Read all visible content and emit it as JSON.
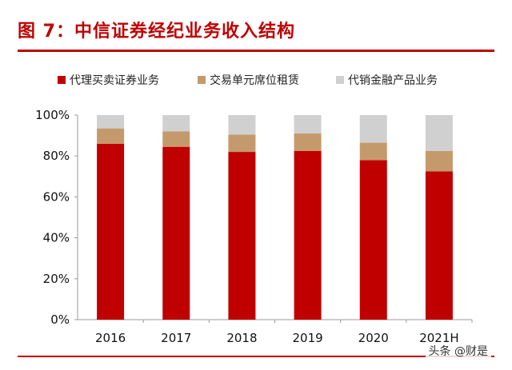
{
  "title": "图 7：中信证券经纪业务收入结构",
  "watermark": "头条 @财是",
  "chart_data": {
    "type": "bar",
    "stacked": true,
    "categories": [
      "2016",
      "2017",
      "2018",
      "2019",
      "2020",
      "2021H"
    ],
    "series": [
      {
        "name": "代理买卖证券业务",
        "color": "#c00000",
        "values": [
          86,
          84.5,
          82,
          82.5,
          78,
          72.5
        ]
      },
      {
        "name": "交易单元席位租赁",
        "color": "#c49a6c",
        "values": [
          7.5,
          7.5,
          8.5,
          8.5,
          8.5,
          10
        ]
      },
      {
        "name": "代销金融产品业务",
        "color": "#d0d0d0",
        "values": [
          6.5,
          8,
          9.5,
          9,
          13.5,
          17.5
        ]
      }
    ],
    "yticks": [
      "0%",
      "20%",
      "40%",
      "60%",
      "80%",
      "100%"
    ],
    "ylim": [
      0,
      100
    ],
    "legend_position": "top",
    "grid": false
  }
}
